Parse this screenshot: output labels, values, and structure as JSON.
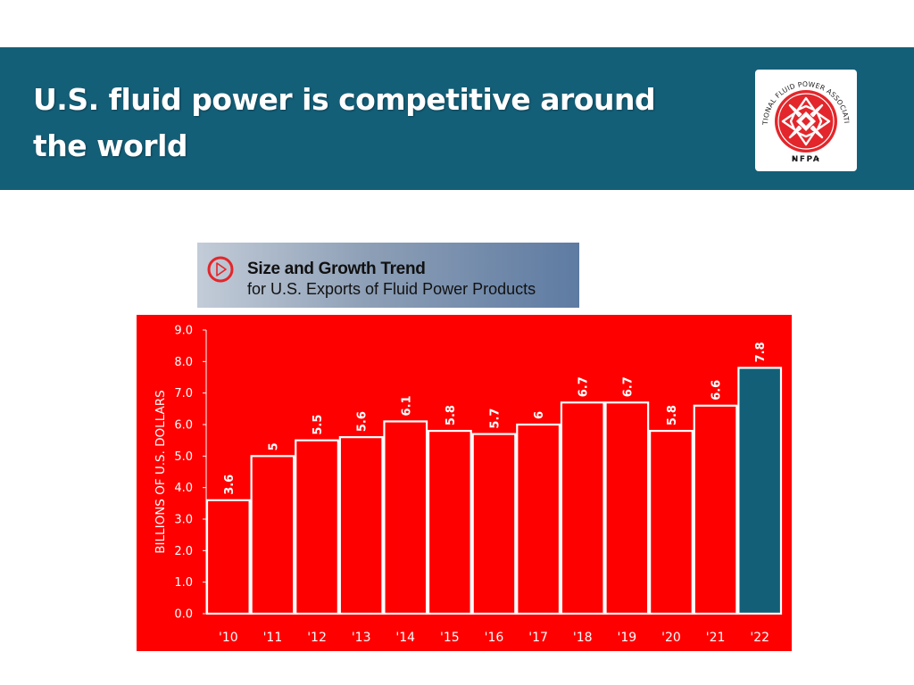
{
  "header": {
    "title_line1": "U.S. fluid power is competitive around",
    "title_line2": "the world",
    "logo": {
      "ring_text": "NATIONAL FLUID POWER ASSOCIATION",
      "abbr": "NFPA",
      "colors": {
        "emblem": "#e3262b",
        "text": "#1a1a1a"
      }
    }
  },
  "banner": {
    "title": "Size and Growth Trend",
    "subtitle": "for U.S. Exports of Fluid Power Products",
    "icon": "play-circle-icon"
  },
  "chart_data": {
    "type": "bar",
    "title": "",
    "xlabel": "",
    "ylabel": "BILLIONS OF U.S. DOLLARS",
    "categories": [
      "'10",
      "'11",
      "'12",
      "'13",
      "'14",
      "'15",
      "'16",
      "'17",
      "'18",
      "'19",
      "'20",
      "'21",
      "'22"
    ],
    "values": [
      3.6,
      5,
      5.5,
      5.6,
      6.1,
      5.8,
      5.7,
      6,
      6.7,
      6.7,
      5.8,
      6.6,
      7.8
    ],
    "data_labels": [
      "3.6",
      "5",
      "5.5",
      "5.6",
      "6.1",
      "5.8",
      "5.7",
      "6",
      "6.7",
      "6.7",
      "5.8",
      "6.6",
      "7.8"
    ],
    "yticks": [
      "0.0",
      "1.0",
      "2.0",
      "3.0",
      "4.0",
      "5.0",
      "6.0",
      "7.0",
      "8.0",
      "9.0"
    ],
    "ylim": [
      0,
      9
    ],
    "grid": false,
    "highlight_index": 12,
    "colors": {
      "background": "#ff0000",
      "bar": "#ff0000",
      "bar_highlight": "#145f78",
      "bar_edge": "#ffffff",
      "text": "#ffffff"
    }
  },
  "colors": {
    "header_bg": "#145f78",
    "title_text": "#ffffff"
  }
}
